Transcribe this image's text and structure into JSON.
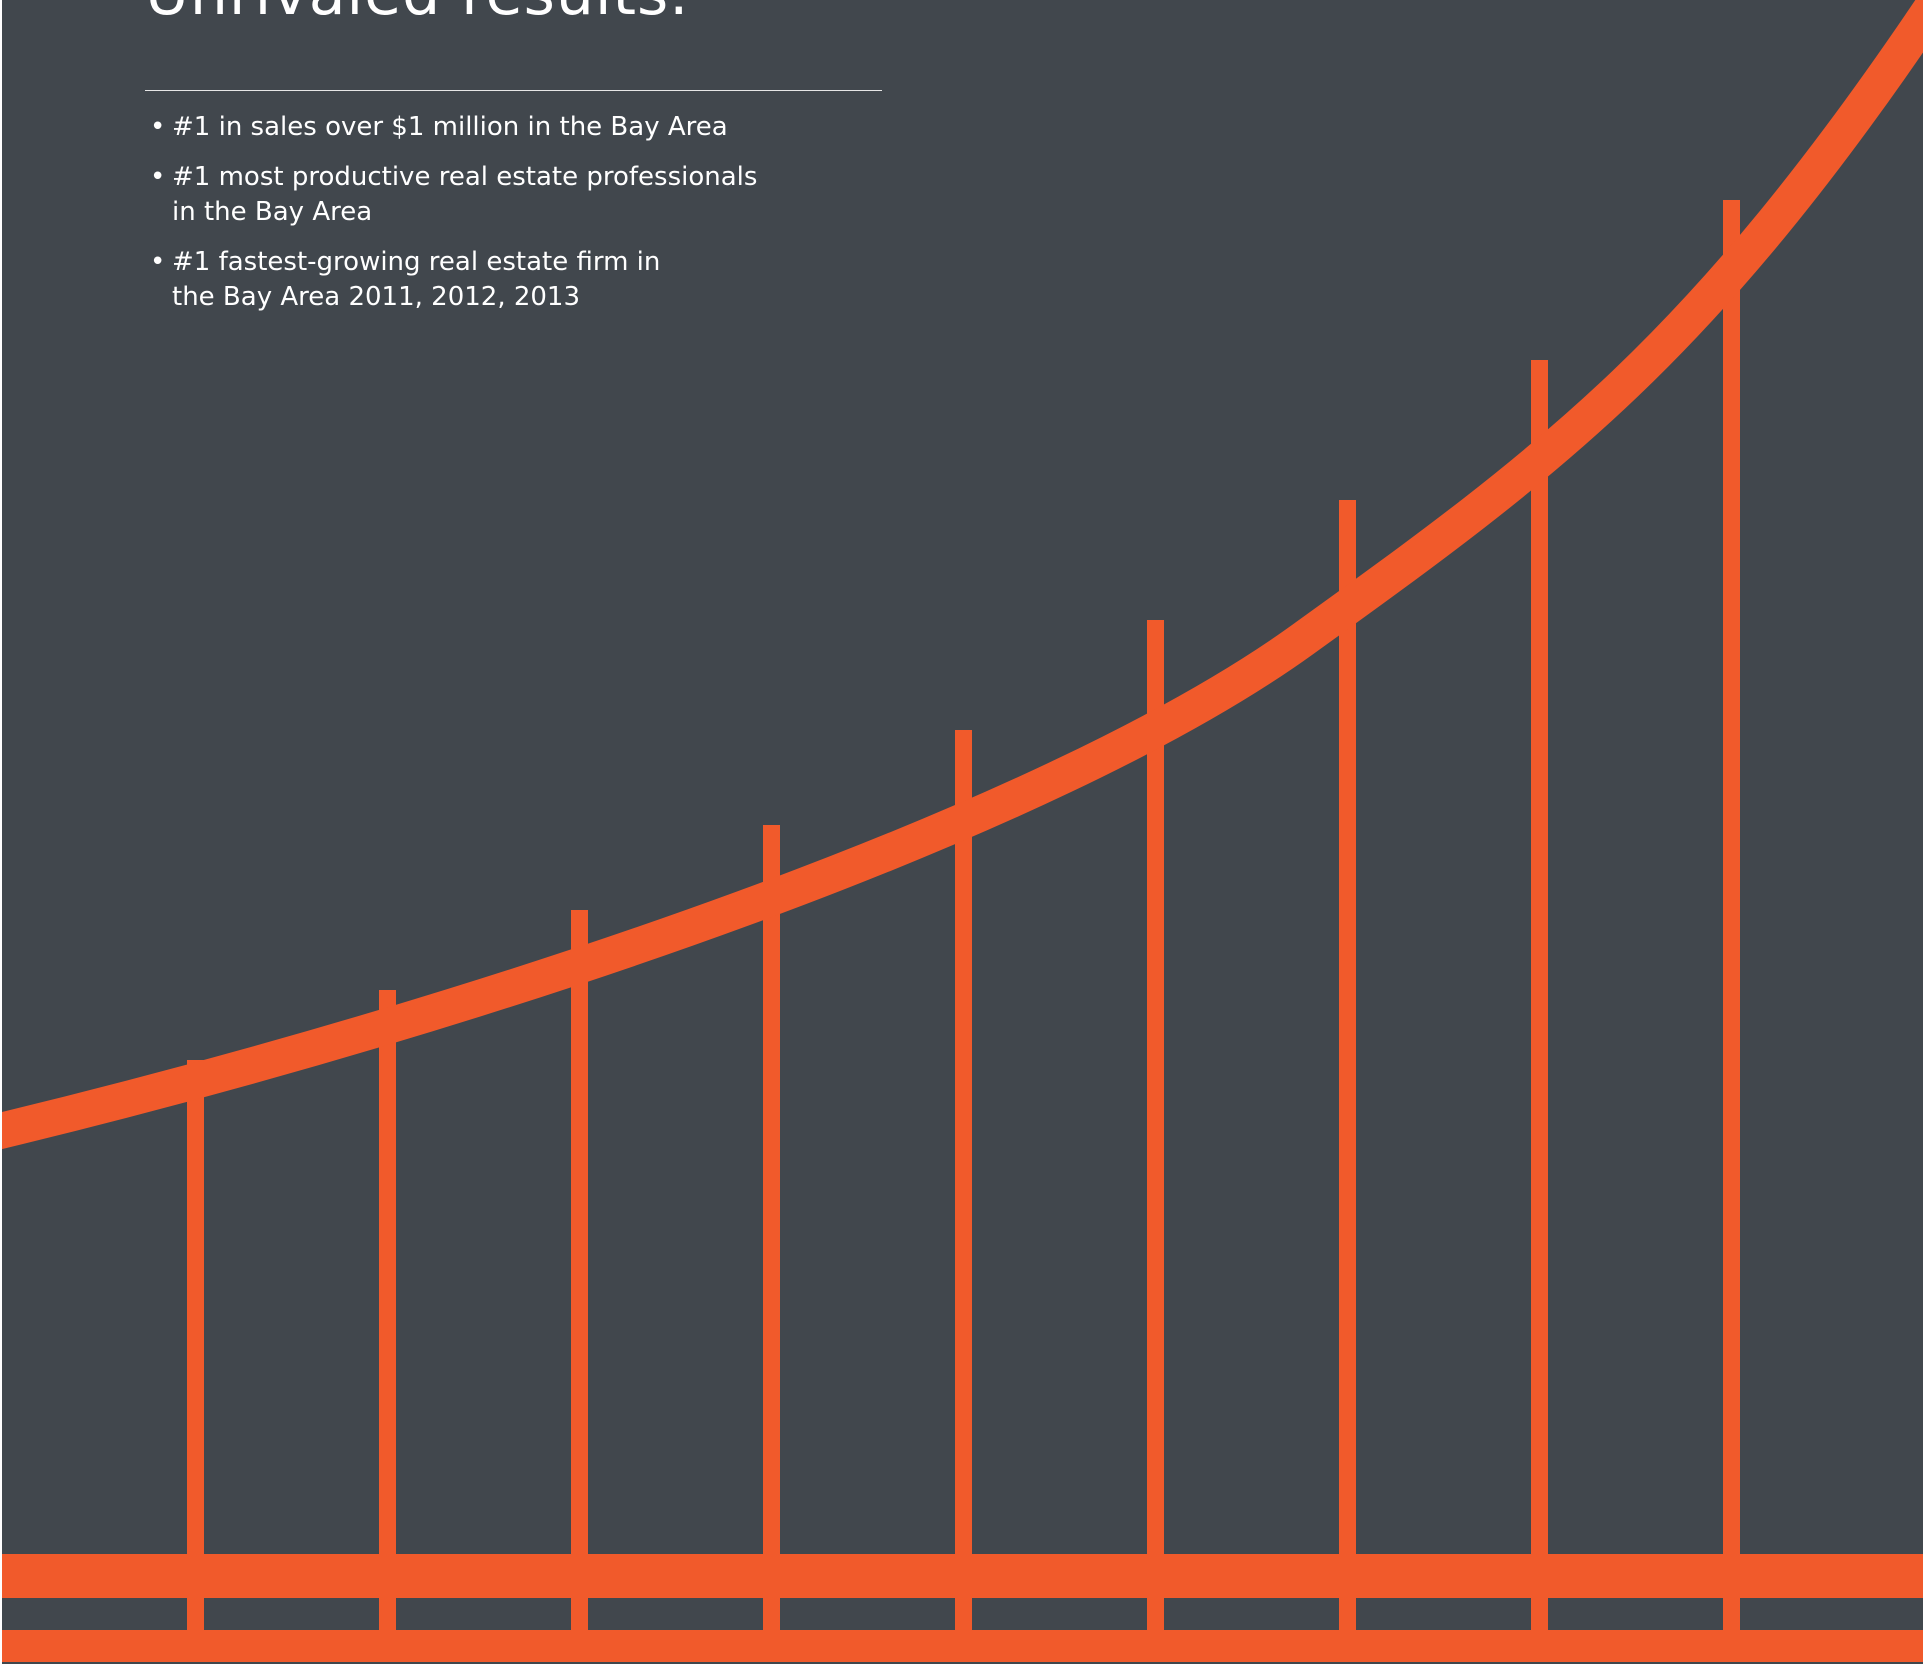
{
  "headline": "Unrivaled results.",
  "bullet_glyph": "•",
  "bullets": [
    "#1 in sales over $1 million in the Bay Area",
    "#1 most productive real estate professionals\nin the Bay Area",
    "#1 fastest-growing real estate firm in\nthe Bay Area 2011, 2012, 2013"
  ],
  "colors": {
    "background": "#41474d",
    "bridge": "#f15a2b",
    "text": "#ffffff",
    "rule": "#e6e6e6"
  },
  "illustration": "golden-gate-bridge-cable-rising-curve"
}
